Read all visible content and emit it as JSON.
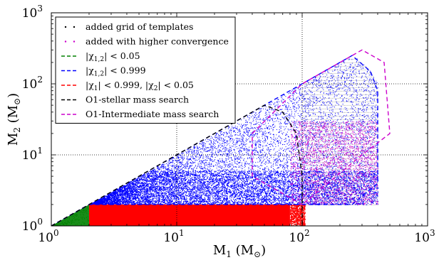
{
  "chart_data": {
    "type": "scatter",
    "xlabel": "M",
    "xlabel_sub": "1",
    "xlabel_unit": "(M",
    "xlabel_unit_sub": "⊙",
    "xlabel_close": ")",
    "ylabel": "M",
    "ylabel_sub": "2",
    "ylabel_unit": "(M",
    "ylabel_unit_sub": "⊙",
    "ylabel_close": ")",
    "xscale": "log",
    "yscale": "log",
    "xlim": [
      1,
      1000
    ],
    "ylim": [
      1,
      1000
    ],
    "grid": true,
    "legend_placement": "top-left",
    "x_ticks": [
      {
        "value": 1,
        "base": "10",
        "exp": "0"
      },
      {
        "value": 10,
        "base": "10",
        "exp": "1"
      },
      {
        "value": 100,
        "base": "10",
        "exp": "2"
      },
      {
        "value": 1000,
        "base": "10",
        "exp": "3"
      }
    ],
    "y_ticks": [
      {
        "value": 1,
        "base": "10",
        "exp": "0"
      },
      {
        "value": 10,
        "base": "10",
        "exp": "1"
      },
      {
        "value": 100,
        "base": "10",
        "exp": "2"
      },
      {
        "value": 1000,
        "base": "10",
        "exp": "3"
      }
    ],
    "series": [
      {
        "name": "added grid of templates",
        "kind": "points",
        "color": "#000000",
        "dot_color": "#808080",
        "region": {
          "x": [
            100,
            400
          ],
          "y": [
            2,
            100
          ],
          "rule": "grid under m1 = m2 line"
        }
      },
      {
        "name": "added with higher convergence",
        "kind": "points",
        "color": "#cc00cc",
        "region": {
          "x": [
            80,
            400
          ],
          "y": [
            2,
            30
          ],
          "rule": "scatter"
        }
      },
      {
        "name": "|χ1,2| < 0.05",
        "kind": "region",
        "color": "#008000",
        "region": {
          "x": [
            1,
            2
          ],
          "y": [
            1,
            2
          ],
          "rule": "m2 <= m1"
        }
      },
      {
        "name": "|χ1,2| < 0.999",
        "kind": "region",
        "color": "#0000ff",
        "region": {
          "x": [
            2,
            400
          ],
          "y": [
            2,
            100
          ],
          "rule": "m2 <= m1, m1 + m2 <= 500"
        }
      },
      {
        "name": "|χ1| < 0.999, |χ2| < 0.05",
        "kind": "region",
        "color": "#ff0000",
        "region": {
          "x": [
            2,
            100
          ],
          "y": [
            1,
            2
          ],
          "rule": "band"
        }
      },
      {
        "name": "O1-stellar mass search",
        "kind": "boundary",
        "color": "#000000",
        "boundary": {
          "vertices": [
            [
              1,
              1
            ],
            [
              50,
              50
            ],
            [
              70,
              40
            ],
            [
              90,
              20
            ],
            [
              100,
              5
            ],
            [
              100,
              1
            ]
          ]
        }
      },
      {
        "name": "O1-Intermediate mass search",
        "kind": "boundary",
        "color": "#cc00cc",
        "boundary": {
          "vertices": [
            [
              40,
              20
            ],
            [
              100,
              100
            ],
            [
              200,
              200
            ],
            [
              300,
              300
            ],
            [
              450,
              200
            ],
            [
              500,
              20
            ],
            [
              300,
              10
            ],
            [
              100,
              2
            ],
            [
              40,
              5
            ]
          ]
        }
      }
    ],
    "outer_boundary": {
      "color": "#0000ff",
      "vertices": [
        [
          1,
          1
        ],
        [
          2,
          2
        ],
        [
          250,
          250
        ],
        [
          350,
          150
        ],
        [
          400,
          80
        ],
        [
          400,
          4
        ],
        [
          250,
          2
        ],
        [
          2,
          2
        ]
      ]
    },
    "legend": [
      {
        "text": "added grid of templates",
        "marker": "dots",
        "color": "#000000",
        "plain": true
      },
      {
        "text": "added with higher convergence",
        "marker": "dots",
        "color": "#cc00cc",
        "plain": true
      },
      {
        "text": "|χ",
        "sub": "1,2",
        "suffix": "| < 0.05",
        "marker": "dash",
        "color": "#008000"
      },
      {
        "text": "|χ",
        "sub": "1,2",
        "suffix": "| < 0.999",
        "marker": "dash",
        "color": "#0000ff"
      },
      {
        "text": "|χ",
        "sub": "1",
        "suffix": "| < 0.999, |χ",
        "sub2": "2",
        "suffix2": "| < 0.05",
        "marker": "dash",
        "color": "#ff0000"
      },
      {
        "text": "O1-stellar mass search",
        "marker": "dash",
        "color": "#000000",
        "plain": true
      },
      {
        "text": "O1-Intermediate mass search",
        "marker": "dash",
        "color": "#cc00cc",
        "plain": true
      }
    ]
  }
}
